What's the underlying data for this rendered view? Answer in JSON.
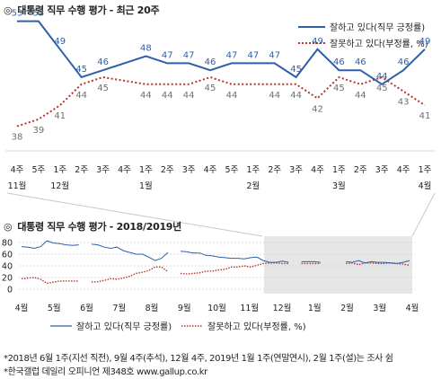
{
  "top_title_mark": "◎",
  "top_title": "대통령 직무 수행 평가 - 최근 20주",
  "bottom_title_mark": "◎",
  "bottom_title": "대통령 직무 수행 평가 - 2018/2019년",
  "footnote_1": "*2018년 6월 1주(지선 직전), 9월 4주(추석), 12월 4주, 2019년 1월 1주(연말연시), 2월 1주(설)는 조사 쉼",
  "footnote_2": "*한국갤럽 데일리 오피니언 제348호 www.gallup.co.kr",
  "colors": {
    "approve": "#2e5fa8",
    "disapprove": "#b5342e"
  },
  "chart_data": [
    {
      "type": "line",
      "title": "대통령 직무 수행 평가 - 최근 20주",
      "categories": [
        "4주",
        "5주",
        "1주",
        "2주",
        "3주",
        "4주",
        "1주",
        "2주",
        "3주",
        "4주",
        "5주",
        "1주",
        "2주",
        "3주",
        "4주",
        "1주",
        "2주",
        "3주",
        "4주",
        "1주"
      ],
      "month_labels": [
        "11월",
        "",
        "12월",
        "",
        "",
        "",
        "1월",
        "",
        "",
        "",
        "",
        "2월",
        "",
        "",
        "",
        "3월",
        "",
        "",
        "",
        "4월"
      ],
      "series": [
        {
          "name": "잘하고 있다(직무 긍정률)",
          "style": "solid",
          "values": [
            53,
            53,
            49,
            45,
            46,
            null,
            48,
            47,
            47,
            46,
            47,
            47,
            47,
            45,
            49,
            46,
            46,
            44,
            46,
            49
          ]
        },
        {
          "name": "잘못하고 있다(부정률, %)",
          "style": "dotted",
          "values": [
            38,
            39,
            41,
            44,
            45,
            null,
            44,
            44,
            44,
            45,
            44,
            null,
            44,
            44,
            42,
            45,
            44,
            45,
            43,
            41
          ]
        }
      ],
      "legend": "top-right",
      "grid": false
    },
    {
      "type": "line",
      "title": "대통령 직무 수행 평가 - 2018/2019년",
      "x_labels": [
        "4월",
        "5월",
        "6월",
        "7월",
        "8월",
        "9월",
        "10월",
        "11월",
        "12월",
        "1월",
        "2월",
        "3월",
        "4월"
      ],
      "ylim": [
        0,
        80
      ],
      "yticks": [
        0,
        20,
        40,
        60,
        80
      ],
      "grid": true,
      "legend": "bottom",
      "highlight_region": "최근 20주",
      "series": [
        {
          "name": "잘하고 있다(직무 긍정률)",
          "style": "solid",
          "values": [
            73,
            72,
            70,
            73,
            83,
            79,
            78,
            76,
            75,
            76,
            null,
            77,
            76,
            72,
            70,
            72,
            66,
            63,
            60,
            60,
            55,
            49,
            53,
            63,
            null,
            65,
            64,
            62,
            62,
            58,
            57,
            55,
            54,
            53,
            53,
            52,
            54,
            55,
            49,
            46,
            46,
            48,
            46,
            null,
            47,
            47,
            47,
            46,
            null,
            48,
            null,
            47,
            46,
            49,
            45,
            47,
            46,
            46,
            45,
            44,
            46,
            49
          ]
        },
        {
          "name": "잘못하고 있다(부정률, %)",
          "style": "dotted",
          "values": [
            18,
            19,
            20,
            17,
            10,
            12,
            14,
            14,
            14,
            14,
            null,
            12,
            13,
            15,
            18,
            17,
            19,
            22,
            27,
            29,
            32,
            38,
            38,
            30,
            null,
            27,
            26,
            27,
            28,
            31,
            31,
            33,
            34,
            38,
            38,
            40,
            38,
            41,
            44,
            45,
            45,
            44,
            44,
            null,
            44,
            44,
            44,
            44,
            null,
            44,
            null,
            44,
            45,
            42,
            45,
            45,
            44,
            44,
            45,
            44,
            43,
            41
          ]
        }
      ]
    }
  ]
}
